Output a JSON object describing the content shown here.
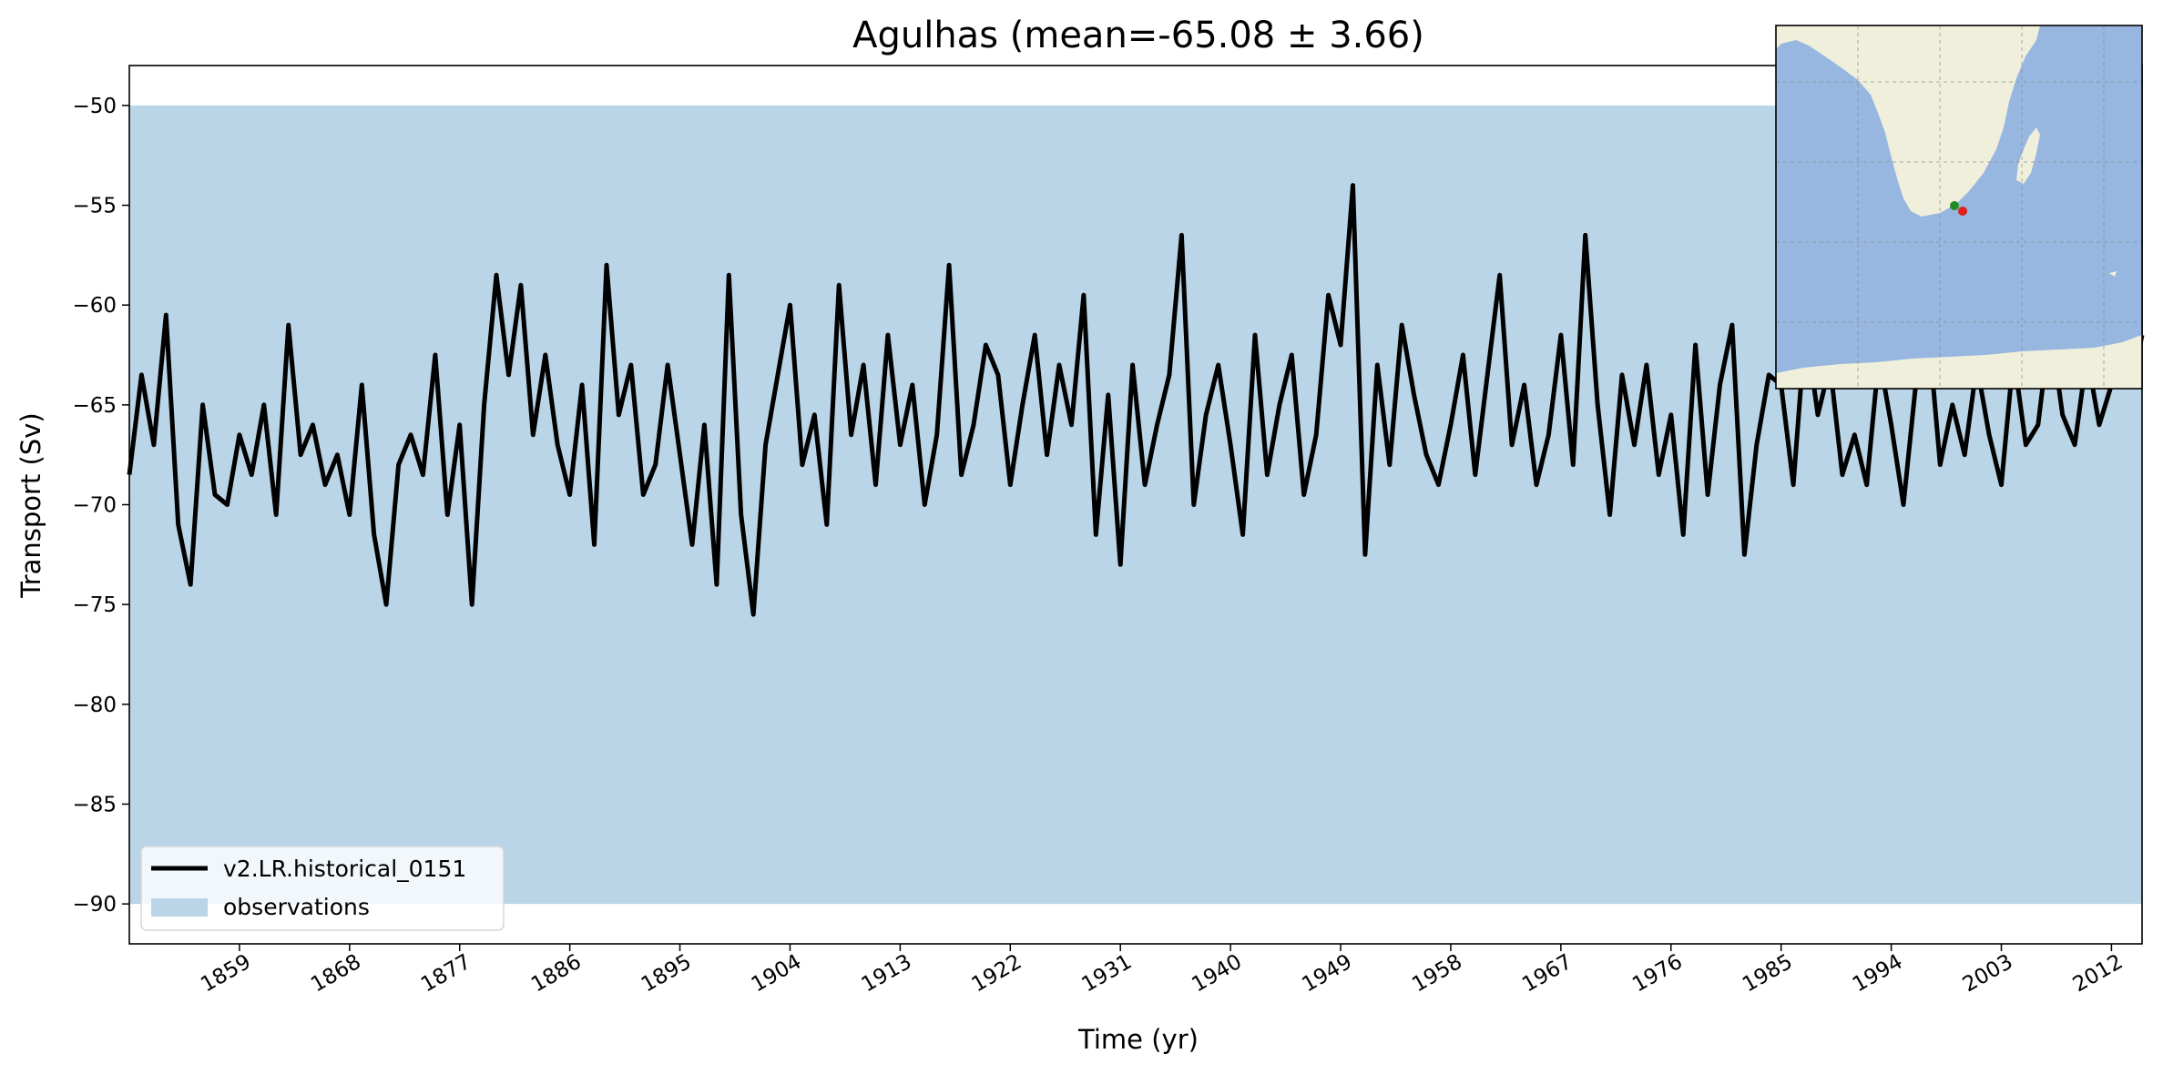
{
  "chart_data": {
    "type": "line",
    "title": "Agulhas (mean=-65.08 ± 3.66)",
    "xlabel": "Time (yr)",
    "ylabel": "Transport (Sv)",
    "xlim": [
      1850,
      2014.5
    ],
    "ylim": [
      -92,
      -48
    ],
    "xticks": [
      1859,
      1868,
      1877,
      1886,
      1895,
      1904,
      1913,
      1922,
      1931,
      1940,
      1949,
      1958,
      1967,
      1976,
      1985,
      1994,
      2003,
      2012
    ],
    "xtick_labels": [
      "1859",
      "1868",
      "1877",
      "1886",
      "1895",
      "1904",
      "1913",
      "1922",
      "1931",
      "1940",
      "1949",
      "1958",
      "1967",
      "1976",
      "1985",
      "1994",
      "2003",
      "2012"
    ],
    "yticks": [
      -90,
      -85,
      -80,
      -75,
      -70,
      -65,
      -60,
      -55,
      -50
    ],
    "ytick_labels": [
      "−90",
      "−85",
      "−80",
      "−75",
      "−70",
      "−65",
      "−60",
      "−55",
      "−50"
    ],
    "grid": false,
    "legend_position": "lower-left",
    "series": [
      {
        "name": "v2.LR.historical_0151",
        "kind": "line",
        "color": "#000000",
        "x": [
          1850.0,
          1851.0,
          1852.0,
          1853.0,
          1854.0,
          1855.0,
          1856.0,
          1857.0,
          1858.0,
          1859.0,
          1860.0,
          1861.0,
          1862.0,
          1863.0,
          1864.0,
          1865.0,
          1866.0,
          1867.0,
          1868.0,
          1869.0,
          1870.0,
          1871.0,
          1872.0,
          1873.0,
          1874.0,
          1875.0,
          1876.0,
          1877.0,
          1878.0,
          1879.0,
          1880.0,
          1881.0,
          1882.0,
          1883.0,
          1884.0,
          1885.0,
          1886.0,
          1887.0,
          1888.0,
          1889.0,
          1890.0,
          1891.0,
          1892.0,
          1893.0,
          1894.0,
          1895.0,
          1896.0,
          1897.0,
          1898.0,
          1899.0,
          1900.0,
          1901.0,
          1902.0,
          1903.0,
          1904.0,
          1905.0,
          1906.0,
          1907.0,
          1908.0,
          1909.0,
          1910.0,
          1911.0,
          1912.0,
          1913.0,
          1914.0,
          1915.0,
          1916.0,
          1917.0,
          1918.0,
          1919.0,
          1920.0,
          1921.0,
          1922.0,
          1923.0,
          1924.0,
          1925.0,
          1926.0,
          1927.0,
          1928.0,
          1929.0,
          1930.0,
          1931.0,
          1932.0,
          1933.0,
          1934.0,
          1935.0,
          1936.0,
          1937.0,
          1938.0,
          1939.0,
          1940.0,
          1941.0,
          1942.0,
          1943.0,
          1944.0,
          1945.0,
          1946.0,
          1947.0,
          1948.0,
          1949.0,
          1950.0,
          1951.0,
          1952.0,
          1953.0,
          1954.0,
          1955.0,
          1956.0,
          1957.0,
          1958.0,
          1959.0,
          1960.0,
          1961.0,
          1962.0,
          1963.0,
          1964.0,
          1965.0,
          1966.0,
          1967.0,
          1968.0,
          1969.0,
          1970.0,
          1971.0,
          1972.0,
          1973.0,
          1974.0,
          1975.0,
          1976.0,
          1977.0,
          1978.0,
          1979.0,
          1980.0,
          1981.0,
          1982.0,
          1983.0,
          1984.0,
          1985.0,
          1986.0,
          1987.0,
          1988.0,
          1989.0,
          1990.0,
          1991.0,
          1992.0,
          1993.0,
          1994.0,
          1995.0,
          1996.0,
          1997.0,
          1998.0,
          1999.0,
          2000.0,
          2001.0,
          2002.0,
          2003.0,
          2004.0,
          2005.0,
          2006.0,
          2007.0,
          2008.0,
          2009.0,
          2010.0,
          2011.0,
          2012.0,
          2013.0,
          2014.0,
          2014.5
        ],
        "y": [
          -68.5,
          -63.5,
          -67.0,
          -60.5,
          -71.0,
          -74.0,
          -65.0,
          -69.5,
          -70.0,
          -66.5,
          -68.5,
          -65.0,
          -70.5,
          -61.0,
          -67.5,
          -66.0,
          -69.0,
          -67.5,
          -70.5,
          -64.0,
          -71.5,
          -75.0,
          -68.0,
          -66.5,
          -68.5,
          -62.5,
          -70.5,
          -66.0,
          -75.0,
          -65.0,
          -58.5,
          -63.5,
          -59.0,
          -66.5,
          -62.5,
          -67.0,
          -69.5,
          -64.0,
          -72.0,
          -58.0,
          -65.5,
          -63.0,
          -69.5,
          -68.0,
          -63.0,
          -67.5,
          -72.0,
          -66.0,
          -74.0,
          -58.5,
          -70.5,
          -75.5,
          -67.0,
          -63.5,
          -60.0,
          -68.0,
          -65.5,
          -71.0,
          -59.0,
          -66.5,
          -63.0,
          -69.0,
          -61.5,
          -67.0,
          -64.0,
          -70.0,
          -66.5,
          -58.0,
          -68.5,
          -66.0,
          -62.0,
          -63.5,
          -69.0,
          -65.0,
          -61.5,
          -67.5,
          -63.0,
          -66.0,
          -59.5,
          -71.5,
          -64.5,
          -73.0,
          -63.0,
          -69.0,
          -66.0,
          -63.5,
          -56.5,
          -70.0,
          -65.5,
          -63.0,
          -67.0,
          -71.5,
          -61.5,
          -68.5,
          -65.0,
          -62.5,
          -69.5,
          -66.5,
          -59.5,
          -62.0,
          -54.0,
          -72.5,
          -63.0,
          -68.0,
          -61.0,
          -64.5,
          -67.5,
          -69.0,
          -66.0,
          -62.5,
          -68.5,
          -63.5,
          -58.5,
          -67.0,
          -64.0,
          -69.0,
          -66.5,
          -61.5,
          -68.0,
          -56.5,
          -65.0,
          -70.5,
          -63.5,
          -67.0,
          -63.0,
          -68.5,
          -65.5,
          -71.5,
          -62.0,
          -69.5,
          -64.0,
          -61.0,
          -72.5,
          -67.0,
          -63.5,
          -64.0,
          -69.0,
          -61.0,
          -65.5,
          -63.0,
          -68.5,
          -66.5,
          -69.0,
          -62.5,
          -66.0,
          -70.0,
          -64.0,
          -61.0,
          -68.0,
          -65.0,
          -67.5,
          -63.0,
          -66.5,
          -69.0,
          -62.5,
          -67.0,
          -66.0,
          -61.0,
          -65.5,
          -67.0,
          -62.5,
          -66.0,
          -64.0,
          -60.5,
          -63.0,
          -61.5
        ]
      },
      {
        "name": "observations",
        "kind": "band",
        "color": "#bad5e8",
        "y_range": [
          -90,
          -50
        ]
      }
    ],
    "inset_map": {
      "ocean_color": "#97b6e0",
      "land_color": "#efefdc",
      "markers": [
        {
          "color": "#228b22"
        },
        {
          "color": "#e0201a"
        }
      ]
    }
  }
}
